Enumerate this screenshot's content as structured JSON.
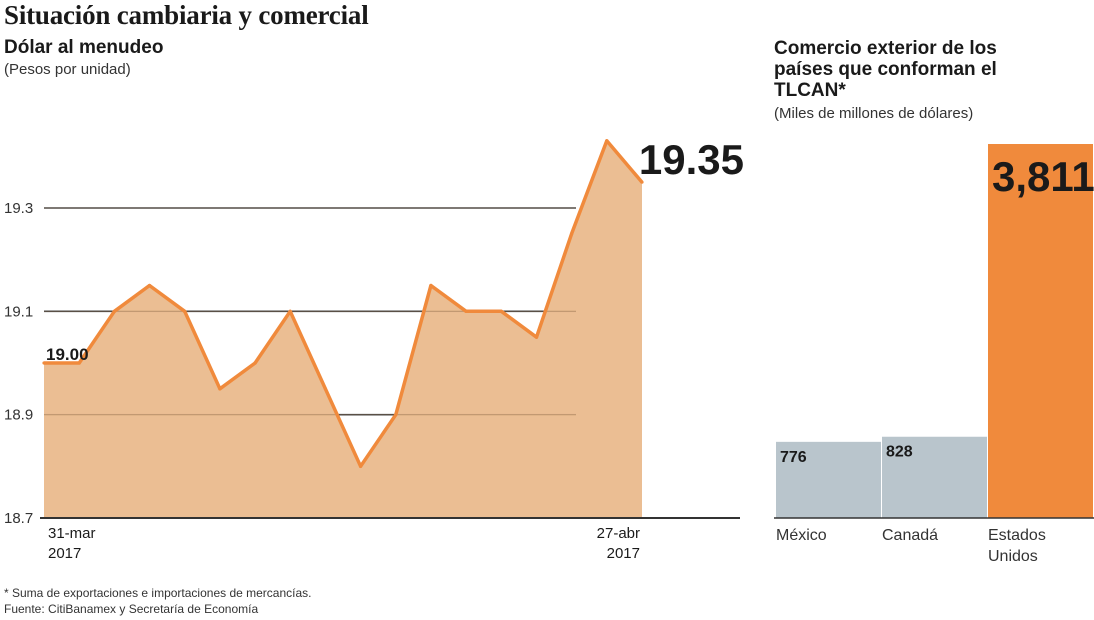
{
  "header": {
    "title": "Situación cambiaria y comercial",
    "footnote": "* Suma de exportaciones e importaciones de mercancías.",
    "source": "Fuente: CitiBanamex y Secretaría de Economía"
  },
  "colors": {
    "orange": "#f08a3c",
    "fill": "#e9b98a",
    "grey": "#b9c5cc",
    "axis": "#333333"
  },
  "chart_data": [
    {
      "type": "area",
      "title": "Dólar al menudeo",
      "ylabel": "(Pesos por unidad)",
      "ylim": [
        18.7,
        19.45
      ],
      "yticks": [
        18.7,
        18.9,
        19.1,
        19.3
      ],
      "ytick_labels": [
        "18.7",
        "18.9",
        "19.1",
        "19.3"
      ],
      "x_labels": [
        {
          "line1": "31-mar",
          "line2": "2017"
        },
        {
          "line1": "27-abr",
          "line2": "2017"
        }
      ],
      "start_label": "19.00",
      "end_label": "19.35",
      "values": [
        19.0,
        19.0,
        19.1,
        19.15,
        19.1,
        18.95,
        19.0,
        19.1,
        18.95,
        18.8,
        18.9,
        19.15,
        19.1,
        19.1,
        19.05,
        19.25,
        19.43,
        19.35
      ]
    },
    {
      "type": "bar",
      "title": "Comercio exterior de los países que conforman el TLCAN*",
      "ylabel": "(Miles de millones de dólares)",
      "categories": [
        {
          "line1": "México",
          "line2": ""
        },
        {
          "line1": "Canadá",
          "line2": ""
        },
        {
          "line1": "Estados",
          "line2": "Unidos"
        }
      ],
      "values": [
        776,
        828,
        3811
      ],
      "value_labels": [
        "776",
        "828",
        "3,811"
      ]
    }
  ]
}
